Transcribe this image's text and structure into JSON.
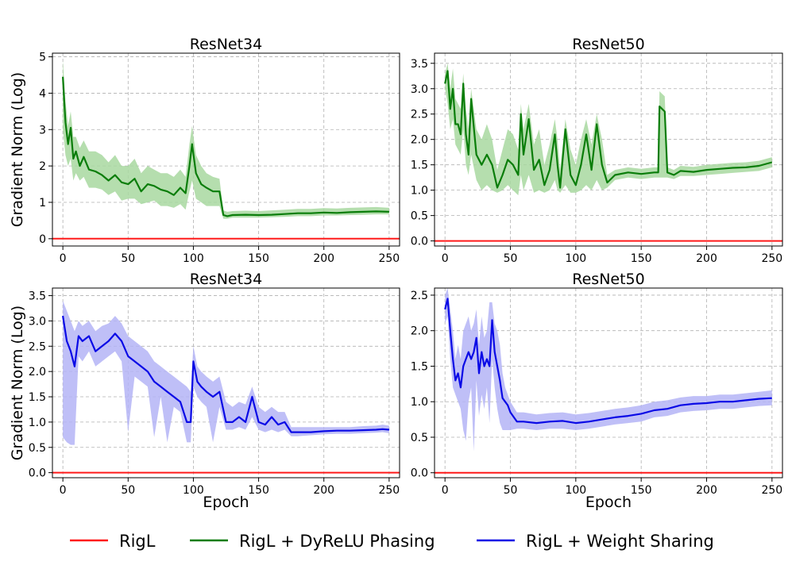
{
  "colors": {
    "rigl": "#ff1a1a",
    "dyrelu": "#0a7d0a",
    "dyrelu_band": "#a8d8a0",
    "ws": "#0a0ae6",
    "ws_band": "#b4b4f6"
  },
  "legend": {
    "items": [
      {
        "label": "RigL",
        "color_key": "rigl"
      },
      {
        "label": "RigL + DyReLU Phasing",
        "color_key": "dyrelu"
      },
      {
        "label": "RigL + Weight Sharing",
        "color_key": "ws"
      }
    ]
  },
  "chart_data": [
    {
      "type": "line",
      "title": "ResNet34",
      "xlabel": "",
      "ylabel": "Gradient Norm (Log)",
      "xlim": [
        -8,
        258
      ],
      "ylim": [
        -0.2,
        5.1
      ],
      "xticks": [
        0,
        50,
        100,
        150,
        200,
        250
      ],
      "yticks": [
        0,
        1,
        2,
        3,
        4,
        5
      ],
      "ytick_labels": [
        "0",
        "1",
        "2",
        "3",
        "4",
        "5"
      ],
      "grid": true,
      "series": [
        {
          "name": "RigL",
          "color_key": "rigl",
          "x": [
            -8,
            258
          ],
          "values": [
            0,
            0
          ]
        },
        {
          "name": "RigL + DyReLU Phasing",
          "color_key": "dyrelu",
          "x": [
            0,
            2,
            4,
            6,
            8,
            10,
            13,
            16,
            20,
            25,
            30,
            35,
            40,
            45,
            50,
            55,
            60,
            65,
            70,
            75,
            80,
            85,
            90,
            94,
            97,
            99,
            102,
            106,
            110,
            115,
            120,
            123,
            126,
            130,
            140,
            150,
            160,
            170,
            180,
            190,
            200,
            210,
            220,
            230,
            240,
            250
          ],
          "values": [
            4.45,
            3.2,
            2.6,
            3.05,
            2.2,
            2.4,
            2.0,
            2.25,
            1.9,
            1.85,
            1.75,
            1.6,
            1.75,
            1.55,
            1.5,
            1.65,
            1.3,
            1.5,
            1.45,
            1.35,
            1.3,
            1.2,
            1.4,
            1.25,
            2.0,
            2.6,
            1.8,
            1.5,
            1.4,
            1.3,
            1.3,
            0.65,
            0.62,
            0.65,
            0.66,
            0.65,
            0.66,
            0.68,
            0.7,
            0.7,
            0.72,
            0.71,
            0.73,
            0.74,
            0.75,
            0.74
          ],
          "band_lower": [
            3.0,
            2.3,
            2.0,
            2.2,
            1.6,
            1.8,
            1.6,
            1.7,
            1.4,
            1.4,
            1.35,
            1.2,
            1.3,
            1.05,
            1.1,
            1.1,
            0.95,
            1.0,
            1.05,
            0.9,
            0.9,
            0.85,
            0.95,
            0.8,
            1.3,
            1.6,
            1.1,
            1.0,
            0.9,
            0.9,
            0.9,
            0.55,
            0.55,
            0.58,
            0.58,
            0.58,
            0.59,
            0.6,
            0.62,
            0.62,
            0.64,
            0.64,
            0.65,
            0.66,
            0.67,
            0.67
          ],
          "band_upper": [
            4.9,
            3.8,
            3.1,
            3.5,
            2.8,
            2.8,
            2.5,
            2.7,
            2.4,
            2.4,
            2.3,
            2.1,
            2.3,
            2.0,
            2.0,
            2.2,
            1.8,
            2.0,
            1.9,
            1.8,
            1.8,
            1.7,
            1.9,
            1.7,
            2.6,
            3.1,
            2.3,
            2.0,
            1.8,
            1.7,
            1.65,
            0.78,
            0.74,
            0.76,
            0.77,
            0.76,
            0.78,
            0.8,
            0.82,
            0.82,
            0.84,
            0.83,
            0.85,
            0.86,
            0.87,
            0.85
          ]
        }
      ]
    },
    {
      "type": "line",
      "title": "ResNet50",
      "xlabel": "",
      "ylabel": "",
      "xlim": [
        -8,
        258
      ],
      "ylim": [
        -0.1,
        3.7
      ],
      "xticks": [
        0,
        50,
        100,
        150,
        200,
        250
      ],
      "yticks": [
        0,
        0.5,
        1,
        1.5,
        2,
        2.5,
        3,
        3.5
      ],
      "ytick_labels": [
        "0.0",
        "0.5",
        "1.0",
        "1.5",
        "2.0",
        "2.5",
        "3.0",
        "3.5"
      ],
      "grid": true,
      "series": [
        {
          "name": "RigL",
          "color_key": "rigl",
          "x": [
            -8,
            258
          ],
          "values": [
            0,
            0
          ]
        },
        {
          "name": "RigL + DyReLU Phasing",
          "color_key": "dyrelu",
          "x": [
            0,
            2,
            4,
            6,
            8,
            10,
            12,
            14,
            16,
            18,
            20,
            24,
            28,
            32,
            36,
            40,
            44,
            48,
            52,
            56,
            58,
            60,
            64,
            68,
            72,
            76,
            80,
            84,
            86,
            88,
            92,
            96,
            100,
            104,
            108,
            112,
            116,
            120,
            124,
            130,
            140,
            150,
            160,
            163,
            164,
            166,
            168,
            170,
            175,
            180,
            190,
            200,
            210,
            220,
            230,
            240,
            250
          ],
          "values": [
            3.1,
            3.35,
            2.6,
            3.0,
            2.3,
            2.3,
            2.1,
            3.1,
            2.1,
            1.7,
            2.8,
            1.7,
            1.5,
            1.7,
            1.5,
            1.05,
            1.3,
            1.6,
            1.5,
            1.3,
            2.5,
            1.7,
            2.4,
            1.4,
            1.6,
            1.1,
            1.4,
            2.1,
            1.5,
            1.05,
            2.2,
            1.3,
            1.1,
            1.5,
            2.1,
            1.4,
            2.3,
            1.5,
            1.15,
            1.3,
            1.35,
            1.32,
            1.35,
            1.35,
            2.65,
            2.6,
            2.55,
            1.35,
            1.3,
            1.38,
            1.36,
            1.4,
            1.42,
            1.44,
            1.45,
            1.48,
            1.55
          ],
          "band_lower": [
            3.0,
            2.7,
            2.2,
            2.4,
            1.9,
            1.8,
            1.7,
            2.2,
            1.5,
            1.3,
            1.7,
            1.2,
            1.0,
            1.1,
            1.0,
            0.95,
            1.0,
            1.1,
            1.0,
            0.9,
            1.3,
            1.0,
            1.3,
            0.95,
            1.0,
            0.95,
            1.0,
            1.2,
            1.0,
            0.95,
            1.1,
            0.95,
            0.95,
            1.0,
            1.1,
            1.0,
            1.2,
            1.0,
            1.05,
            1.2,
            1.25,
            1.22,
            1.25,
            1.25,
            1.25,
            1.25,
            1.25,
            1.25,
            1.22,
            1.28,
            1.28,
            1.3,
            1.32,
            1.34,
            1.36,
            1.38,
            1.45
          ],
          "band_upper": [
            3.3,
            3.5,
            3.0,
            3.4,
            2.8,
            2.7,
            2.6,
            3.3,
            2.6,
            2.2,
            3.0,
            2.2,
            2.0,
            2.3,
            2.0,
            1.4,
            1.8,
            2.2,
            2.1,
            1.8,
            2.7,
            2.2,
            2.7,
            1.9,
            2.2,
            1.5,
            1.9,
            2.4,
            2.0,
            1.4,
            2.4,
            1.8,
            1.5,
            2.0,
            2.4,
            1.9,
            2.5,
            2.0,
            1.3,
            1.4,
            1.45,
            1.42,
            1.45,
            1.45,
            2.95,
            2.9,
            2.85,
            1.45,
            1.4,
            1.48,
            1.46,
            1.5,
            1.52,
            1.54,
            1.55,
            1.58,
            1.65
          ]
        }
      ]
    },
    {
      "type": "line",
      "title": "ResNet34",
      "xlabel": "Epoch",
      "ylabel": "Gradient Norm (Log)",
      "xlim": [
        -8,
        258
      ],
      "ylim": [
        -0.1,
        3.65
      ],
      "xticks": [
        0,
        50,
        100,
        150,
        200,
        250
      ],
      "yticks": [
        0,
        0.5,
        1,
        1.5,
        2,
        2.5,
        3,
        3.5
      ],
      "ytick_labels": [
        "0.0",
        "0.5",
        "1.0",
        "1.5",
        "2.0",
        "2.5",
        "3.0",
        "3.5"
      ],
      "grid": true,
      "series": [
        {
          "name": "RigL",
          "color_key": "rigl",
          "x": [
            -8,
            258
          ],
          "values": [
            0,
            0
          ]
        },
        {
          "name": "RigL + Weight Sharing",
          "color_key": "ws",
          "x": [
            0,
            3,
            6,
            9,
            12,
            15,
            20,
            25,
            30,
            35,
            40,
            45,
            50,
            55,
            60,
            65,
            70,
            75,
            80,
            85,
            90,
            95,
            98,
            100,
            103,
            106,
            110,
            115,
            120,
            125,
            130,
            135,
            140,
            145,
            150,
            155,
            160,
            165,
            170,
            175,
            180,
            190,
            200,
            210,
            220,
            230,
            240,
            245,
            250
          ],
          "values": [
            3.1,
            2.6,
            2.4,
            2.1,
            2.7,
            2.6,
            2.7,
            2.4,
            2.5,
            2.6,
            2.75,
            2.6,
            2.3,
            2.2,
            2.1,
            2.0,
            1.8,
            1.7,
            1.6,
            1.5,
            1.4,
            1.0,
            1.0,
            2.2,
            1.8,
            1.7,
            1.6,
            1.5,
            1.6,
            1.0,
            1.0,
            1.1,
            1.0,
            1.5,
            1.0,
            0.95,
            1.1,
            0.95,
            1.0,
            0.8,
            0.8,
            0.8,
            0.82,
            0.83,
            0.83,
            0.84,
            0.85,
            0.86,
            0.85
          ],
          "band_lower": [
            0.7,
            0.6,
            0.55,
            0.55,
            2.3,
            2.2,
            2.4,
            2.1,
            2.2,
            2.3,
            2.4,
            2.2,
            0.8,
            1.9,
            1.8,
            1.7,
            0.7,
            1.5,
            0.6,
            1.3,
            1.2,
            0.6,
            0.6,
            1.7,
            1.5,
            1.4,
            1.3,
            0.6,
            1.3,
            0.85,
            0.85,
            0.9,
            0.85,
            1.1,
            0.85,
            0.8,
            0.85,
            0.8,
            0.85,
            0.72,
            0.72,
            0.74,
            0.76,
            0.77,
            0.77,
            0.78,
            0.79,
            0.8,
            0.78
          ],
          "band_upper": [
            3.4,
            3.2,
            3.0,
            2.8,
            3.0,
            2.9,
            3.0,
            2.8,
            2.9,
            2.95,
            3.1,
            2.95,
            2.7,
            2.6,
            2.5,
            2.4,
            2.2,
            2.1,
            2.0,
            1.9,
            1.8,
            1.7,
            1.6,
            2.5,
            2.1,
            2.0,
            1.9,
            1.8,
            1.9,
            1.4,
            1.3,
            1.4,
            1.35,
            1.7,
            1.3,
            1.2,
            1.3,
            1.2,
            1.2,
            0.9,
            0.9,
            0.9,
            0.9,
            0.9,
            0.9,
            0.92,
            0.93,
            0.95,
            0.93
          ]
        }
      ]
    },
    {
      "type": "line",
      "title": "ResNet50",
      "xlabel": "Epoch",
      "ylabel": "",
      "xlim": [
        -8,
        258
      ],
      "ylim": [
        -0.07,
        2.6
      ],
      "xticks": [
        0,
        50,
        100,
        150,
        200,
        250
      ],
      "yticks": [
        0,
        0.5,
        1,
        1.5,
        2,
        2.5
      ],
      "ytick_labels": [
        "0.0",
        "0.5",
        "1.0",
        "1.5",
        "2.0",
        "2.5"
      ],
      "grid": true,
      "series": [
        {
          "name": "RigL",
          "color_key": "rigl",
          "x": [
            -8,
            258
          ],
          "values": [
            0,
            0
          ]
        },
        {
          "name": "RigL + Weight Sharing",
          "color_key": "ws",
          "x": [
            0,
            2,
            4,
            6,
            8,
            10,
            12,
            14,
            16,
            18,
            20,
            22,
            24,
            26,
            28,
            30,
            32,
            34,
            36,
            38,
            40,
            42,
            44,
            46,
            48,
            50,
            55,
            60,
            70,
            80,
            90,
            100,
            110,
            120,
            130,
            140,
            150,
            160,
            170,
            180,
            190,
            200,
            210,
            220,
            230,
            240,
            250
          ],
          "values": [
            2.3,
            2.45,
            2.0,
            1.6,
            1.3,
            1.4,
            1.2,
            1.5,
            1.6,
            1.7,
            1.6,
            1.7,
            1.9,
            1.4,
            1.7,
            1.5,
            1.6,
            1.5,
            2.15,
            1.7,
            1.5,
            1.3,
            1.05,
            1.0,
            0.95,
            0.85,
            0.72,
            0.72,
            0.7,
            0.72,
            0.73,
            0.7,
            0.72,
            0.75,
            0.78,
            0.8,
            0.83,
            0.88,
            0.9,
            0.95,
            0.97,
            0.98,
            1.0,
            1.0,
            1.02,
            1.04,
            1.05
          ],
          "band_lower": [
            2.1,
            2.2,
            1.6,
            1.2,
            1.1,
            1.0,
            0.9,
            0.6,
            0.45,
            1.0,
            1.2,
            0.3,
            1.3,
            0.8,
            1.1,
            0.9,
            1.2,
            0.7,
            1.6,
            1.2,
            0.9,
            0.7,
            0.6,
            0.6,
            0.6,
            0.6,
            0.62,
            0.62,
            0.6,
            0.62,
            0.62,
            0.6,
            0.62,
            0.65,
            0.68,
            0.7,
            0.72,
            0.78,
            0.8,
            0.85,
            0.87,
            0.88,
            0.9,
            0.9,
            0.92,
            0.94,
            0.95
          ],
          "band_upper": [
            2.5,
            2.6,
            2.3,
            2.0,
            1.6,
            1.8,
            1.6,
            2.0,
            2.1,
            2.2,
            2.0,
            2.1,
            2.3,
            1.8,
            2.2,
            1.9,
            2.0,
            2.4,
            2.4,
            2.1,
            2.0,
            1.8,
            1.4,
            1.2,
            1.1,
            1.0,
            0.85,
            0.85,
            0.82,
            0.84,
            0.85,
            0.82,
            0.84,
            0.87,
            0.9,
            0.92,
            0.95,
            1.0,
            1.02,
            1.06,
            1.08,
            1.08,
            1.1,
            1.1,
            1.12,
            1.14,
            1.16
          ]
        }
      ]
    }
  ]
}
